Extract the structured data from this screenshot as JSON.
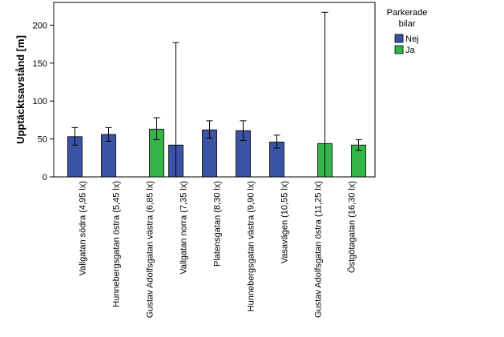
{
  "chart_data": {
    "type": "bar",
    "ylabel": "Upptäcktsavstånd [m]",
    "xlabel": "",
    "ylim": [
      0,
      230
    ],
    "yticks": [
      0,
      50,
      100,
      150,
      200
    ],
    "grid": false,
    "legend": {
      "title_lines": [
        "Parkerade",
        "bilar"
      ],
      "placement": "right",
      "entries": [
        {
          "name": "Nej",
          "color": "#3a53a4"
        },
        {
          "name": "Ja",
          "color": "#35b44a"
        }
      ]
    },
    "categories": [
      "Vallgatan södra (4,95 lx)",
      "Hunnebergsgatan östra (5,45 lx)",
      "Gustav Adolfsgatan västra (6,85 lx)",
      "Vallgatan norra (7,35 lx)",
      "Platensgatan (8,30 lx)",
      "Hunnebergsgatan västra (9,90 lx)",
      "Vasavägen (10,55 lx)",
      "Gustav Adolfsgatan östra (11,25 lx)",
      "Östgötagatan (16,30 lx)"
    ],
    "series": [
      {
        "name": "Nej",
        "color": "#3a53a4",
        "values": [
          53,
          56,
          null,
          42,
          62,
          61,
          46,
          null,
          null
        ],
        "err_low": [
          42,
          47,
          null,
          0,
          51,
          48,
          38,
          null,
          null
        ],
        "err_high": [
          65,
          65,
          null,
          177,
          74,
          74,
          55,
          null,
          null
        ]
      },
      {
        "name": "Ja",
        "color": "#35b44a",
        "values": [
          null,
          null,
          63,
          null,
          null,
          null,
          null,
          44,
          42
        ],
        "err_low": [
          null,
          null,
          49,
          null,
          null,
          null,
          null,
          0,
          35
        ],
        "err_high": [
          null,
          null,
          78,
          null,
          null,
          null,
          null,
          217,
          49
        ]
      }
    ]
  }
}
